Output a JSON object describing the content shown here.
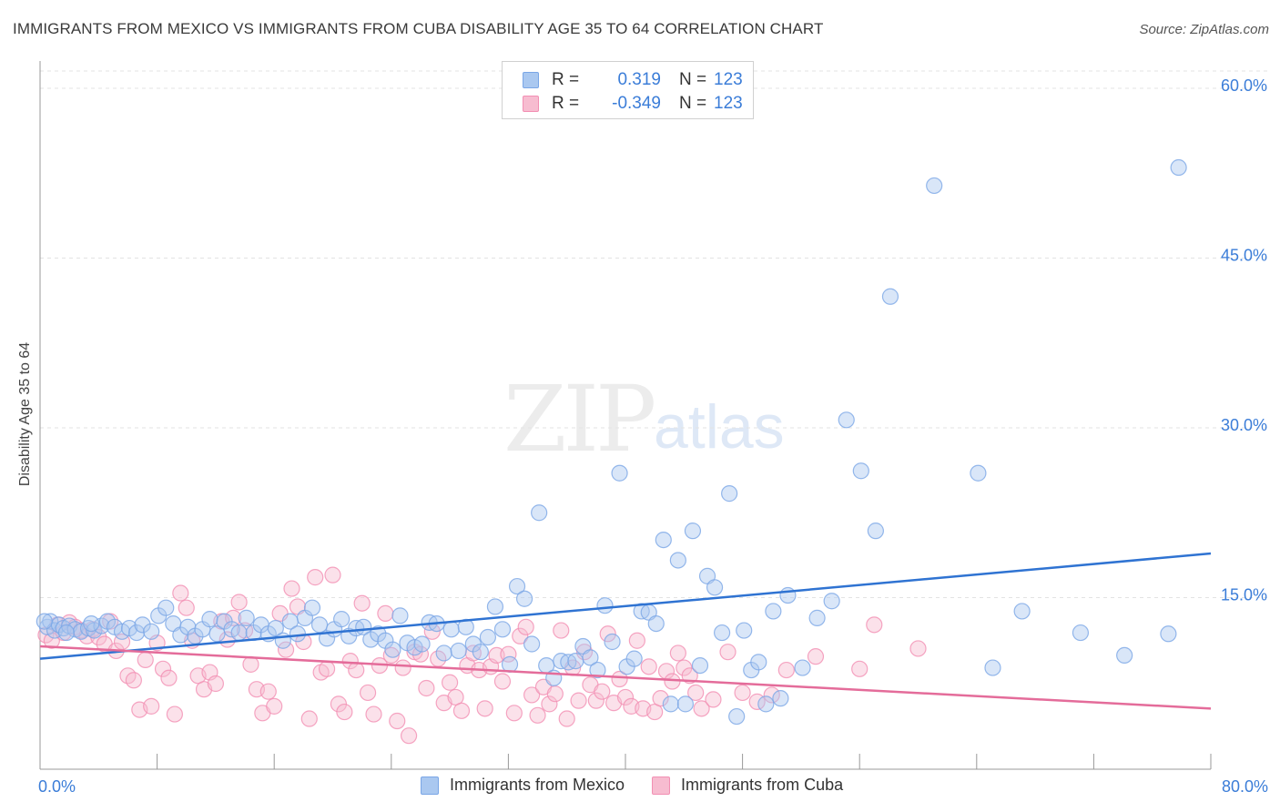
{
  "title": "IMMIGRANTS FROM MEXICO VS IMMIGRANTS FROM CUBA DISABILITY AGE 35 TO 64 CORRELATION CHART",
  "source": "Source: ZipAtlas.com",
  "watermark": {
    "part1": "ZIP",
    "part2": "atlas"
  },
  "colors": {
    "mexico": "#7aa6e6",
    "mexico_fill": "#aac8f0",
    "mexico_line": "#2f73d2",
    "cuba": "#f28fb3",
    "cuba_fill": "#f7bcd0",
    "cuba_line": "#e46c9a",
    "accent_text": "#3b7dd8"
  },
  "legend": {
    "rows": [
      {
        "r_label": "R =",
        "r_value": "0.319",
        "n_label": "N =",
        "n_value": "123"
      },
      {
        "r_label": "R =",
        "r_value": "-0.349",
        "n_label": "N =",
        "n_value": "123"
      }
    ]
  },
  "bottom_legend": {
    "mexico": "Immigrants from Mexico",
    "cuba": "Immigrants from Cuba"
  },
  "chart_data": {
    "type": "scatter",
    "title": "IMMIGRANTS FROM MEXICO VS IMMIGRANTS FROM CUBA DISABILITY AGE 35 TO 64 CORRELATION CHART",
    "xlabel": "",
    "ylabel": "Disability Age 35 to 64",
    "xlim": [
      0,
      80
    ],
    "ylim": [
      0,
      62
    ],
    "x_tick_labels": [
      "0.0%",
      "80.0%"
    ],
    "y_tick_labels": [
      "15.0%",
      "30.0%",
      "45.0%",
      "60.0%"
    ],
    "y_ticks": [
      15,
      30,
      45,
      60
    ],
    "grid": true,
    "legend_position": "top-center",
    "series": [
      {
        "name": "Immigrants from Mexico",
        "r": 0.319,
        "n": 123,
        "trend": {
          "x0": 0,
          "y0": 9.6,
          "x1": 80,
          "y1": 18.9
        },
        "points": [
          [
            0.5,
            12.4
          ],
          [
            0.7,
            12.9
          ],
          [
            1,
            12.1
          ],
          [
            1.3,
            12.6
          ],
          [
            1.6,
            12.3
          ],
          [
            2,
            12.5
          ],
          [
            2.4,
            12.2
          ],
          [
            2.8,
            12.0
          ],
          [
            3.3,
            12.3
          ],
          [
            3.7,
            12.1
          ],
          [
            4.2,
            12.5
          ],
          [
            4.6,
            12.9
          ],
          [
            5.1,
            12.4
          ],
          [
            5.6,
            12.0
          ],
          [
            6.1,
            12.3
          ],
          [
            6.6,
            11.9
          ],
          [
            7,
            12.6
          ],
          [
            7.6,
            12.0
          ],
          [
            8.1,
            13.4
          ],
          [
            8.6,
            14.1
          ],
          [
            9.1,
            12.7
          ],
          [
            9.6,
            11.7
          ],
          [
            10.1,
            12.4
          ],
          [
            10.6,
            11.6
          ],
          [
            11.1,
            12.2
          ],
          [
            11.6,
            13.1
          ],
          [
            12.1,
            11.8
          ],
          [
            12.6,
            12.9
          ],
          [
            13.1,
            12.2
          ],
          [
            13.6,
            11.9
          ],
          [
            14.1,
            13.2
          ],
          [
            14.6,
            11.9
          ],
          [
            15.1,
            12.6
          ],
          [
            15.6,
            11.8
          ],
          [
            16.1,
            12.3
          ],
          [
            16.6,
            11.2
          ],
          [
            17.1,
            12.9
          ],
          [
            17.6,
            11.8
          ],
          [
            18.1,
            13.2
          ],
          [
            18.6,
            14.1
          ],
          [
            19.1,
            12.6
          ],
          [
            19.6,
            11.4
          ],
          [
            20.1,
            12.2
          ],
          [
            20.6,
            13.1
          ],
          [
            21.1,
            11.6
          ],
          [
            21.6,
            12.3
          ],
          [
            22.1,
            12.4
          ],
          [
            22.6,
            11.3
          ],
          [
            23.1,
            11.8
          ],
          [
            23.6,
            11.2
          ],
          [
            24.1,
            10.4
          ],
          [
            24.6,
            13.4
          ],
          [
            25.1,
            11.0
          ],
          [
            25.6,
            10.6
          ],
          [
            26.1,
            10.9
          ],
          [
            26.6,
            12.8
          ],
          [
            27.1,
            12.7
          ],
          [
            27.6,
            10.1
          ],
          [
            28.1,
            12.2
          ],
          [
            28.6,
            10.3
          ],
          [
            29.1,
            12.4
          ],
          [
            29.6,
            10.9
          ],
          [
            30.1,
            10.2
          ],
          [
            30.6,
            11.5
          ],
          [
            31.1,
            14.2
          ],
          [
            31.6,
            12.2
          ],
          [
            32.1,
            9.1
          ],
          [
            32.6,
            16.0
          ],
          [
            33.1,
            14.9
          ],
          [
            33.6,
            10.9
          ],
          [
            34.1,
            22.5
          ],
          [
            34.6,
            9.0
          ],
          [
            35.1,
            7.9
          ],
          [
            35.6,
            9.4
          ],
          [
            36.1,
            9.3
          ],
          [
            36.6,
            9.4
          ],
          [
            37.1,
            10.7
          ],
          [
            37.6,
            9.7
          ],
          [
            38.1,
            8.6
          ],
          [
            38.6,
            14.3
          ],
          [
            39.1,
            11.1
          ],
          [
            39.6,
            26.0
          ],
          [
            40.1,
            8.9
          ],
          [
            40.6,
            9.6
          ],
          [
            41.1,
            13.8
          ],
          [
            41.6,
            13.7
          ],
          [
            42.1,
            12.7
          ],
          [
            42.6,
            20.1
          ],
          [
            43.1,
            5.6
          ],
          [
            43.6,
            18.3
          ],
          [
            44.1,
            5.6
          ],
          [
            44.6,
            20.9
          ],
          [
            45.1,
            9.0
          ],
          [
            45.6,
            16.9
          ],
          [
            46.1,
            15.9
          ],
          [
            46.6,
            11.9
          ],
          [
            47.1,
            24.2
          ],
          [
            47.6,
            4.5
          ],
          [
            48.1,
            12.1
          ],
          [
            48.6,
            8.6
          ],
          [
            49.1,
            9.3
          ],
          [
            49.6,
            5.6
          ],
          [
            50.1,
            13.8
          ],
          [
            50.6,
            6.1
          ],
          [
            51.1,
            15.2
          ],
          [
            52.1,
            8.8
          ],
          [
            53.1,
            13.2
          ],
          [
            54.1,
            14.7
          ],
          [
            55.1,
            30.7
          ],
          [
            56.1,
            26.2
          ],
          [
            57.1,
            20.9
          ],
          [
            58.1,
            41.6
          ],
          [
            61.1,
            51.4
          ],
          [
            64.1,
            26.0
          ],
          [
            65.1,
            8.8
          ],
          [
            67.1,
            13.8
          ],
          [
            71.1,
            11.9
          ],
          [
            74.1,
            9.9
          ],
          [
            77.1,
            11.8
          ],
          [
            77.8,
            53.0
          ],
          [
            0.3,
            12.9
          ],
          [
            1.8,
            11.9
          ],
          [
            3.5,
            12.7
          ]
        ]
      },
      {
        "name": "Immigrants from Cuba",
        "r": -0.349,
        "n": 123,
        "trend": {
          "x0": 0,
          "y0": 10.7,
          "x1": 80,
          "y1": 5.2
        },
        "points": [
          [
            0.4,
            11.7
          ],
          [
            0.8,
            11.2
          ],
          [
            1.2,
            12.6
          ],
          [
            1.6,
            11.9
          ],
          [
            2,
            12.8
          ],
          [
            2.4,
            12.4
          ],
          [
            2.8,
            12.1
          ],
          [
            3.2,
            11.6
          ],
          [
            3.6,
            12.2
          ],
          [
            4,
            11.5
          ],
          [
            4.4,
            10.9
          ],
          [
            4.8,
            12.9
          ],
          [
            5.2,
            10.3
          ],
          [
            5.6,
            11.1
          ],
          [
            6,
            8.1
          ],
          [
            6.4,
            7.7
          ],
          [
            6.8,
            5.1
          ],
          [
            7.2,
            9.5
          ],
          [
            7.6,
            5.4
          ],
          [
            8,
            11.0
          ],
          [
            8.4,
            8.7
          ],
          [
            8.8,
            7.9
          ],
          [
            9.2,
            4.7
          ],
          [
            9.6,
            15.4
          ],
          [
            10,
            14.1
          ],
          [
            10.4,
            11.2
          ],
          [
            10.8,
            8.1
          ],
          [
            11.2,
            6.9
          ],
          [
            11.6,
            8.4
          ],
          [
            12,
            7.4
          ],
          [
            12.4,
            12.9
          ],
          [
            12.8,
            11.3
          ],
          [
            13.2,
            13.2
          ],
          [
            13.6,
            14.6
          ],
          [
            14,
            12.1
          ],
          [
            14.4,
            9.1
          ],
          [
            14.8,
            6.9
          ],
          [
            15.2,
            4.8
          ],
          [
            15.6,
            6.7
          ],
          [
            16,
            5.4
          ],
          [
            16.4,
            13.6
          ],
          [
            16.8,
            10.4
          ],
          [
            17.2,
            15.8
          ],
          [
            17.6,
            14.2
          ],
          [
            18,
            11.1
          ],
          [
            18.4,
            4.3
          ],
          [
            18.8,
            16.8
          ],
          [
            19.2,
            8.4
          ],
          [
            19.6,
            8.7
          ],
          [
            20,
            17.0
          ],
          [
            20.4,
            5.6
          ],
          [
            20.8,
            4.9
          ],
          [
            21.2,
            9.4
          ],
          [
            21.6,
            8.6
          ],
          [
            22,
            14.5
          ],
          [
            22.4,
            6.6
          ],
          [
            22.8,
            4.7
          ],
          [
            23.2,
            9.0
          ],
          [
            23.6,
            13.6
          ],
          [
            24,
            9.9
          ],
          [
            24.4,
            4.1
          ],
          [
            24.8,
            8.8
          ],
          [
            25.2,
            2.8
          ],
          [
            25.6,
            10.2
          ],
          [
            26,
            10.0
          ],
          [
            26.4,
            7.0
          ],
          [
            26.8,
            12.0
          ],
          [
            27.2,
            9.6
          ],
          [
            27.6,
            5.7
          ],
          [
            28,
            7.5
          ],
          [
            28.4,
            6.2
          ],
          [
            28.8,
            5.0
          ],
          [
            29.2,
            9.0
          ],
          [
            29.6,
            10.1
          ],
          [
            30,
            8.6
          ],
          [
            30.4,
            5.2
          ],
          [
            30.8,
            8.9
          ],
          [
            31.2,
            9.9
          ],
          [
            31.6,
            7.6
          ],
          [
            32,
            10.0
          ],
          [
            32.4,
            4.8
          ],
          [
            32.8,
            11.6
          ],
          [
            33.2,
            12.4
          ],
          [
            33.6,
            6.4
          ],
          [
            34,
            4.6
          ],
          [
            34.4,
            7.1
          ],
          [
            34.8,
            5.6
          ],
          [
            35.2,
            6.5
          ],
          [
            35.6,
            12.1
          ],
          [
            36,
            4.3
          ],
          [
            36.4,
            8.8
          ],
          [
            36.8,
            5.9
          ],
          [
            37.2,
            10.2
          ],
          [
            37.6,
            7.3
          ],
          [
            38,
            5.9
          ],
          [
            38.4,
            6.7
          ],
          [
            38.8,
            11.8
          ],
          [
            39.2,
            5.7
          ],
          [
            39.6,
            7.8
          ],
          [
            40,
            6.2
          ],
          [
            40.4,
            5.4
          ],
          [
            40.8,
            11.2
          ],
          [
            41.2,
            5.2
          ],
          [
            41.6,
            8.9
          ],
          [
            42,
            4.9
          ],
          [
            42.4,
            6.1
          ],
          [
            42.8,
            8.5
          ],
          [
            43.2,
            7.6
          ],
          [
            43.6,
            10.1
          ],
          [
            44,
            8.8
          ],
          [
            44.4,
            8.1
          ],
          [
            44.8,
            6.6
          ],
          [
            45.2,
            5.2
          ],
          [
            46,
            6.0
          ],
          [
            47,
            10.2
          ],
          [
            48,
            6.6
          ],
          [
            49,
            5.8
          ],
          [
            50,
            6.4
          ],
          [
            51,
            8.6
          ],
          [
            53,
            9.8
          ],
          [
            56,
            8.7
          ],
          [
            57,
            12.6
          ],
          [
            60,
            10.5
          ]
        ]
      }
    ]
  }
}
